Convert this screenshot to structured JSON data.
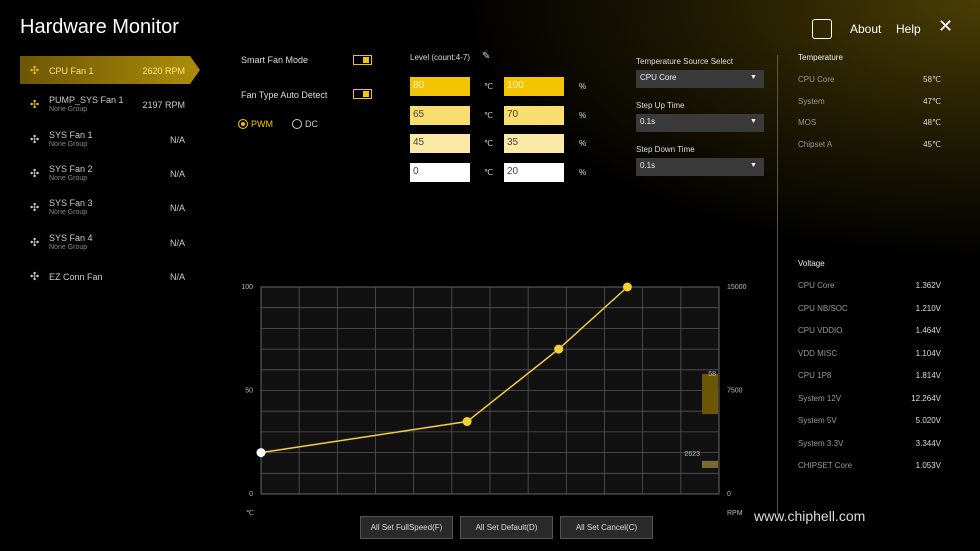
{
  "header": {
    "title": "Hardware Monitor",
    "nav": [
      "About",
      "Help"
    ]
  },
  "fans": [
    {
      "name": "CPU Fan 1",
      "value": "2620 RPM"
    },
    {
      "name": "PUMP_SYS Fan 1",
      "group": "None Group",
      "value": "2197 RPM"
    },
    {
      "name": "SYS Fan 1",
      "group": "None Group",
      "value": "N/A"
    },
    {
      "name": "SYS Fan 2",
      "group": "None Group",
      "value": "N/A"
    },
    {
      "name": "SYS Fan 3",
      "group": "None Group",
      "value": "N/A"
    },
    {
      "name": "SYS Fan 4",
      "group": "None Group",
      "value": "N/A"
    },
    {
      "name": "EZ Conn Fan",
      "value": "N/A"
    }
  ],
  "settings": {
    "smart_fan_mode": "Smart Fan Mode",
    "fan_type": "Fan Type Auto Detect",
    "modes": [
      "PWM",
      "DC"
    ]
  },
  "level": {
    "title": "Level (count:4-7)",
    "rows": [
      {
        "temp": 80,
        "temp_unit": "℃",
        "duty": 100,
        "duty_unit": "%"
      },
      {
        "temp": 65,
        "temp_unit": "℃",
        "duty": 70,
        "duty_unit": "%"
      },
      {
        "temp": 45,
        "temp_unit": "℃",
        "duty": 35,
        "duty_unit": "%"
      },
      {
        "temp": 0,
        "temp_unit": "℃",
        "duty": 20,
        "duty_unit": "%"
      }
    ]
  },
  "source": [
    {
      "label": "Temperature Source Select",
      "value": "CPU Core"
    },
    {
      "label": "Step Up Time",
      "value": "0.1s"
    },
    {
      "label": "Step Down Time",
      "value": "0.1s"
    }
  ],
  "temperature": {
    "title": "Temperature",
    "items": [
      {
        "name": "CPU Core",
        "value": "58℃"
      },
      {
        "name": "System",
        "value": "47℃"
      },
      {
        "name": "MOS",
        "value": "48℃"
      },
      {
        "name": "Chipset A",
        "value": "45℃"
      }
    ]
  },
  "voltage": {
    "title": "Voltage",
    "items": [
      {
        "name": "CPU Core",
        "value": "1.362V"
      },
      {
        "name": "CPU NB/SOC",
        "value": "1.210V"
      },
      {
        "name": "CPU VDDIO",
        "value": "1.464V"
      },
      {
        "name": "VDD MISC",
        "value": "1.104V"
      },
      {
        "name": "CPU 1P8",
        "value": "1.814V"
      },
      {
        "name": "System 12V",
        "value": "12.264V"
      },
      {
        "name": "System 5V",
        "value": "5.020V"
      },
      {
        "name": "System 3.3V",
        "value": "3.344V"
      },
      {
        "name": "CHIPSET Core",
        "value": "1.053V"
      }
    ]
  },
  "curve": {
    "xlim": [
      0,
      100
    ],
    "ylim": [
      0,
      100
    ],
    "yticks": [
      0,
      50,
      100
    ],
    "y2lim": [
      0,
      15000
    ],
    "y2ticks": [
      0,
      7500,
      15000
    ],
    "x_unit": "℃",
    "y2_unit": "RPM",
    "temp_marker": 58,
    "rpm_marker": 2623
  },
  "buttons": [
    "All Set FullSpeed(F)",
    "All Set Default(D)",
    "All Set Cancel(C)"
  ],
  "watermark": "www.chiphell.com"
}
